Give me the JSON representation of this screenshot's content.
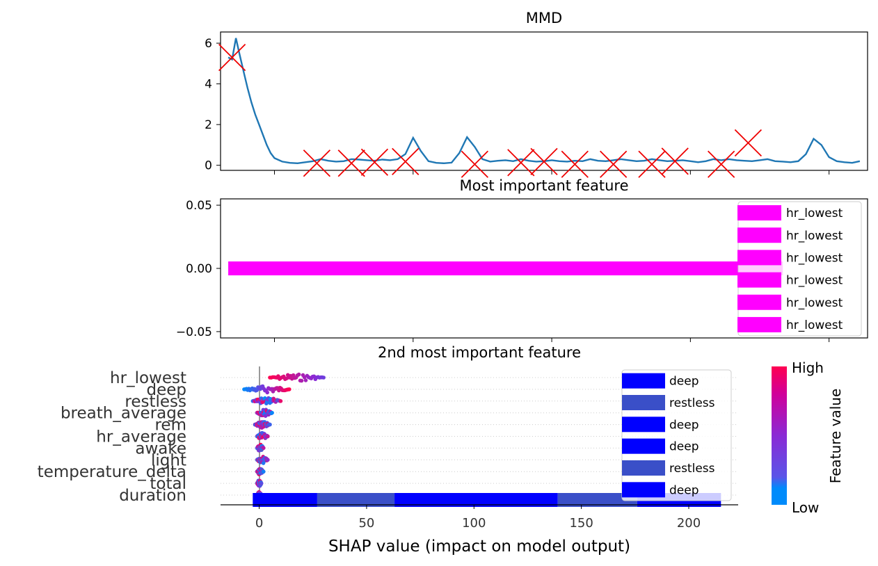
{
  "chart_data": [
    {
      "type": "line",
      "title": "MMD",
      "xlabel": "",
      "ylabel": "",
      "xlim": [
        -1,
        83
      ],
      "ylim": [
        -0.25,
        6.55
      ],
      "yticks": [
        0,
        2,
        4,
        6
      ],
      "xticks_at": [
        6,
        24,
        42,
        60,
        78
      ],
      "grid": false,
      "line_color": "#1f77b4",
      "marker_color": "#ee0000",
      "series": [
        {
          "x": [
            0,
            0.5,
            1,
            1.5,
            2,
            2.5,
            3,
            3.5,
            4,
            4.5,
            5,
            5.5,
            6,
            7,
            8,
            9,
            10,
            11,
            12,
            13,
            14,
            15,
            16,
            17,
            18,
            19,
            20,
            21,
            22,
            23,
            24,
            25,
            26,
            27,
            28,
            29,
            30,
            31,
            32,
            33,
            34,
            35,
            36,
            37,
            38,
            39,
            40,
            41,
            42,
            43,
            44,
            45,
            46,
            47,
            48,
            49,
            50,
            51,
            52,
            53,
            54,
            55,
            56,
            57,
            58,
            59,
            60,
            61,
            62,
            63,
            64,
            65,
            66,
            67,
            68,
            69,
            70,
            71,
            72,
            73,
            74,
            75,
            76,
            77,
            78,
            79,
            80,
            81,
            82
          ],
          "y": [
            5.3,
            5.2,
            6.25,
            5.4,
            4.6,
            3.8,
            3.1,
            2.5,
            2.0,
            1.5,
            1.0,
            0.6,
            0.35,
            0.18,
            0.12,
            0.1,
            0.15,
            0.2,
            0.3,
            0.22,
            0.18,
            0.2,
            0.3,
            0.28,
            0.25,
            0.22,
            0.28,
            0.25,
            0.3,
            0.55,
            1.35,
            0.7,
            0.2,
            0.12,
            0.1,
            0.13,
            0.6,
            1.38,
            0.9,
            0.3,
            0.18,
            0.22,
            0.25,
            0.2,
            0.3,
            0.22,
            0.18,
            0.2,
            0.25,
            0.2,
            0.18,
            0.22,
            0.2,
            0.3,
            0.22,
            0.2,
            0.25,
            0.3,
            0.25,
            0.2,
            0.22,
            0.3,
            0.25,
            0.2,
            0.22,
            0.25,
            0.2,
            0.15,
            0.2,
            0.3,
            0.25,
            0.3,
            0.25,
            0.22,
            0.2,
            0.25,
            0.3,
            0.2,
            0.18,
            0.15,
            0.2,
            0.55,
            1.3,
            1.0,
            0.4,
            0.2,
            0.15,
            0.12,
            0.2
          ]
        }
      ],
      "markers": {
        "x": [
          0.5,
          11.5,
          16,
          19,
          23,
          32,
          38,
          41,
          45,
          50,
          55,
          58,
          64,
          67.5
        ],
        "y": [
          5.3,
          0.1,
          0.1,
          0.15,
          0.18,
          0.05,
          0.13,
          0.18,
          0.05,
          0.05,
          0.05,
          0.2,
          0.05,
          1.1
        ]
      }
    },
    {
      "type": "bar",
      "title": "Most important feature",
      "xlabel": "",
      "ylabel": "",
      "ylim": [
        -0.055,
        0.055
      ],
      "yticks": [
        "0.05",
        "0.00",
        "−0.05"
      ],
      "yticks_values": [
        0.05,
        0.0,
        -0.05
      ],
      "bar_color": "#ff00ff",
      "bar": {
        "x_start": 0,
        "x_end": 72,
        "y": 0.0,
        "height": 0.0055
      },
      "legend_placement": "upper-right",
      "legend_entries": [
        "hr_lowest",
        "hr_lowest",
        "hr_lowest",
        "hr_lowest",
        "hr_lowest",
        "hr_lowest"
      ]
    },
    {
      "type": "scatter",
      "title": "2nd most important feature",
      "xlabel": "SHAP value (impact on model output)",
      "ylabel": "",
      "xlim": [
        -18,
        223
      ],
      "xticks": [
        0,
        50,
        100,
        150,
        200
      ],
      "features": [
        "hr_lowest",
        "deep",
        "restless",
        "breath_average",
        "rem",
        "hr_average",
        "awake",
        "light",
        "temperature_delta",
        "total",
        "duration"
      ],
      "feature_shap_ranges": [
        [
          5,
          30
        ],
        [
          -7,
          14
        ],
        [
          -3,
          10
        ],
        [
          -1,
          6
        ],
        [
          -2,
          5
        ],
        [
          -1,
          4
        ],
        [
          -1,
          2
        ],
        [
          -1,
          4
        ],
        [
          -1,
          2
        ],
        [
          -1,
          1
        ],
        [
          -1,
          1
        ]
      ],
      "colorbar": {
        "label": "Feature value",
        "high": "High",
        "low": "Low",
        "high_color": "#ff0051",
        "mid_color": "#8a2ad5",
        "low_color": "#008bfb"
      },
      "stacked_bar": {
        "y_feature": "duration",
        "segments": [
          {
            "label": "deep",
            "start": -3,
            "end": 27,
            "color": "#0000ff"
          },
          {
            "label": "restless",
            "start": 27,
            "end": 63,
            "color": "#3a4fc8"
          },
          {
            "label": "deep",
            "start": 63,
            "end": 139,
            "color": "#0000ff"
          },
          {
            "label": "restless",
            "start": 139,
            "end": 176,
            "color": "#3a4fc8"
          },
          {
            "label": "deep",
            "start": 176,
            "end": 215,
            "color": "#0000ff"
          }
        ]
      },
      "legend_placement": "upper-right",
      "legend_entries": [
        {
          "label": "deep",
          "color": "#0000ff"
        },
        {
          "label": "restless",
          "color": "#3a4fc8"
        },
        {
          "label": "deep",
          "color": "#0000ff"
        },
        {
          "label": "deep",
          "color": "#0000ff"
        },
        {
          "label": "restless",
          "color": "#3a4fc8"
        },
        {
          "label": "deep",
          "color": "#0000ff"
        }
      ]
    }
  ]
}
